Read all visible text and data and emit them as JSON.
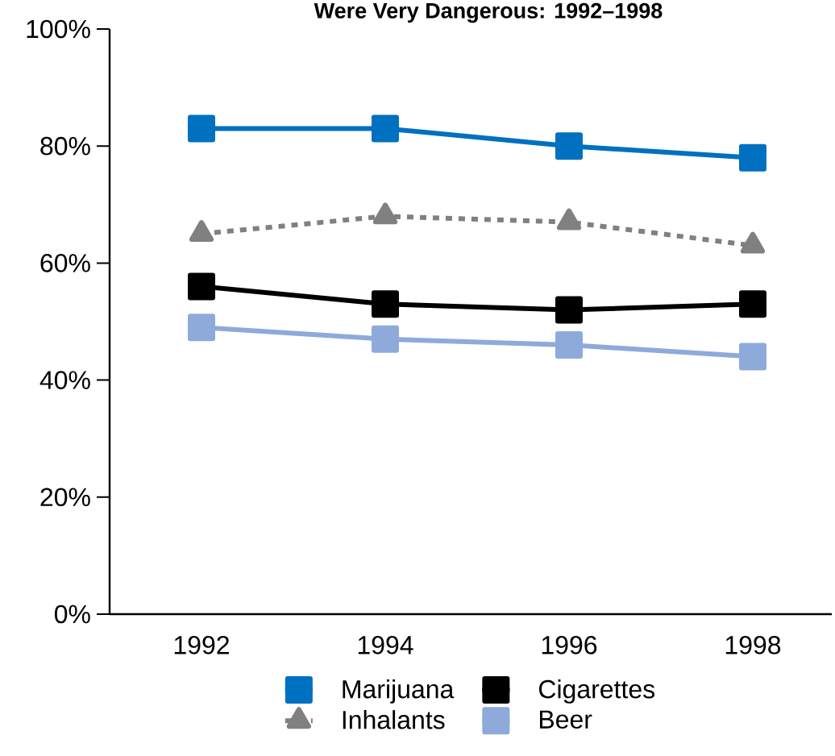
{
  "chart_data": {
    "type": "line",
    "title": "Were Very Dangerous: 1992–1998",
    "categories": [
      "1992",
      "1994",
      "1996",
      "1998"
    ],
    "series": [
      {
        "name": "Marijuana",
        "color": "#0070c0",
        "values": [
          83,
          83,
          80,
          78
        ],
        "marker": "square",
        "line_style": "solid"
      },
      {
        "name": "Cigarettes",
        "color": "#000000",
        "values": [
          56,
          53,
          52,
          53
        ],
        "marker": "square",
        "line_style": "solid"
      },
      {
        "name": "Inhalants",
        "color": "#808080",
        "values": [
          65,
          68,
          67,
          63
        ],
        "marker": "triangle",
        "line_style": "dashed"
      },
      {
        "name": "Beer",
        "color": "#8eaadb",
        "values": [
          49,
          47,
          46,
          44
        ],
        "marker": "square",
        "line_style": "solid"
      }
    ],
    "ylim": [
      0,
      100
    ],
    "yticks": [
      {
        "value": 0,
        "label": "0%"
      },
      {
        "value": 20,
        "label": "20%"
      },
      {
        "value": 40,
        "label": "40%"
      },
      {
        "value": 60,
        "label": "60%"
      },
      {
        "value": 80,
        "label": "80%"
      },
      {
        "value": 100,
        "label": "100%"
      }
    ],
    "grid": false,
    "legend": "bottom"
  }
}
